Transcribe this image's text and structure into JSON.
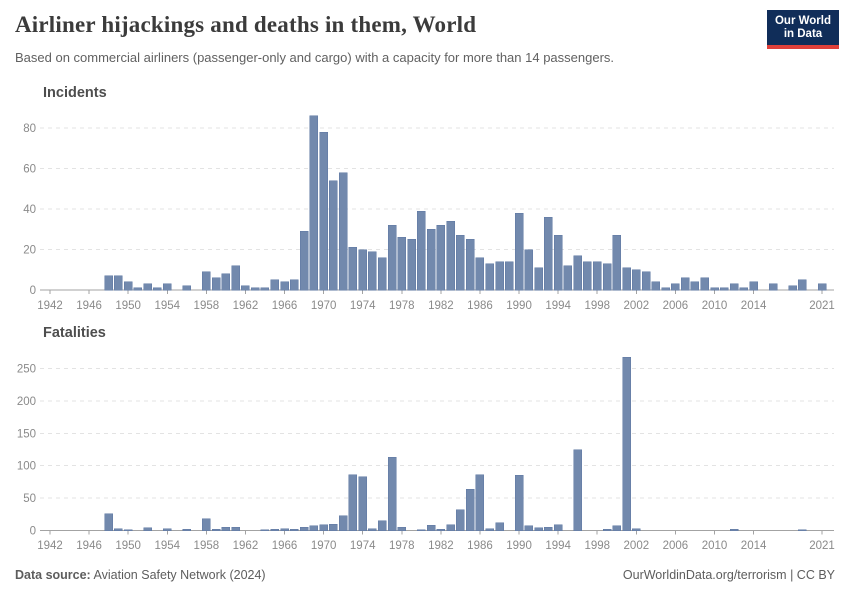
{
  "header": {
    "title": "Airliner hijackings and deaths in them, World",
    "subtitle": "Based on commercial airliners (passenger-only and cargo) with a capacity for more than 14 passengers.",
    "logo": {
      "line1": "Our World",
      "line2": "in Data"
    }
  },
  "footer": {
    "source_label": "Data source:",
    "source_text": " Aviation Safety Network (2024)",
    "url_text": "OurWorldinData.org/terrorism",
    "separator": " | ",
    "license_text": "CC BY"
  },
  "colors": {
    "bar": "#7289ad",
    "bar_stroke": "#5d77a2",
    "grid": "#e3e3e3",
    "axis": "#a3a3a3",
    "tick_label": "#8a8a8a",
    "logo_bg": "#102d59",
    "logo_stripe": "#e0403a"
  },
  "chart_data": [
    {
      "type": "bar",
      "title": "Incidents",
      "x_range": [
        1942,
        2021
      ],
      "x": [
        1942,
        1943,
        1944,
        1945,
        1946,
        1947,
        1948,
        1949,
        1950,
        1951,
        1952,
        1953,
        1954,
        1955,
        1956,
        1957,
        1958,
        1959,
        1960,
        1961,
        1962,
        1963,
        1964,
        1965,
        1966,
        1967,
        1968,
        1969,
        1970,
        1971,
        1972,
        1973,
        1974,
        1975,
        1976,
        1977,
        1978,
        1979,
        1980,
        1981,
        1982,
        1983,
        1984,
        1985,
        1986,
        1987,
        1988,
        1989,
        1990,
        1991,
        1992,
        1993,
        1994,
        1995,
        1996,
        1997,
        1998,
        1999,
        2000,
        2001,
        2002,
        2003,
        2004,
        2005,
        2006,
        2007,
        2008,
        2009,
        2010,
        2011,
        2012,
        2013,
        2014,
        2015,
        2016,
        2017,
        2018,
        2019,
        2020,
        2021
      ],
      "values": [
        0,
        0,
        0,
        0,
        0,
        0,
        7,
        7,
        4,
        1,
        3,
        1,
        3,
        0,
        2,
        0,
        9,
        6,
        8,
        12,
        2,
        1,
        1,
        5,
        4,
        5,
        29,
        86,
        78,
        54,
        58,
        21,
        20,
        19,
        16,
        32,
        26,
        25,
        39,
        30,
        32,
        34,
        27,
        25,
        16,
        13,
        14,
        14,
        38,
        20,
        11,
        36,
        27,
        12,
        17,
        14,
        14,
        13,
        27,
        11,
        10,
        9,
        4,
        1,
        3,
        6,
        4,
        6,
        1,
        1,
        3,
        1,
        4,
        0,
        3,
        0,
        2,
        5,
        0,
        3
      ],
      "ylim": [
        0,
        80
      ],
      "yticks": [
        0,
        20,
        40,
        60,
        80
      ],
      "xticks": [
        1942,
        1946,
        1950,
        1954,
        1958,
        1962,
        1966,
        1970,
        1974,
        1978,
        1982,
        1986,
        1990,
        1994,
        1998,
        2002,
        2006,
        2010,
        2014,
        2021
      ],
      "grid": true,
      "legend": "none"
    },
    {
      "type": "bar",
      "title": "Fatalities",
      "x_range": [
        1942,
        2021
      ],
      "x": [
        1942,
        1943,
        1944,
        1945,
        1946,
        1947,
        1948,
        1949,
        1950,
        1951,
        1952,
        1953,
        1954,
        1955,
        1956,
        1957,
        1958,
        1959,
        1960,
        1961,
        1962,
        1963,
        1964,
        1965,
        1966,
        1967,
        1968,
        1969,
        1970,
        1971,
        1972,
        1973,
        1974,
        1975,
        1976,
        1977,
        1978,
        1979,
        1980,
        1981,
        1982,
        1983,
        1984,
        1985,
        1986,
        1987,
        1988,
        1989,
        1990,
        1991,
        1992,
        1993,
        1994,
        1995,
        1996,
        1997,
        1998,
        1999,
        2000,
        2001,
        2002,
        2003,
        2004,
        2005,
        2006,
        2007,
        2008,
        2009,
        2010,
        2011,
        2012,
        2013,
        2014,
        2015,
        2016,
        2017,
        2018,
        2019,
        2020,
        2021
      ],
      "values": [
        0,
        0,
        0,
        0,
        0,
        0,
        26,
        3,
        1,
        0,
        4,
        0,
        3,
        0,
        2,
        0,
        18,
        2,
        5,
        5,
        0,
        0,
        1,
        2,
        3,
        2,
        5,
        7,
        9,
        10,
        23,
        86,
        83,
        3,
        15,
        113,
        5,
        0,
        1,
        8,
        2,
        9,
        32,
        64,
        86,
        3,
        12,
        0,
        85,
        7,
        4,
        5,
        9,
        0,
        125,
        0,
        0,
        2,
        7,
        267,
        3,
        0,
        0,
        0,
        0,
        0,
        0,
        0,
        0,
        0,
        2,
        0,
        0,
        0,
        0,
        0,
        0,
        1,
        0,
        0
      ],
      "ylim": [
        0,
        250
      ],
      "yticks": [
        0,
        50,
        100,
        150,
        200,
        250
      ],
      "xticks": [
        1942,
        1946,
        1950,
        1954,
        1958,
        1962,
        1966,
        1970,
        1974,
        1978,
        1982,
        1986,
        1990,
        1994,
        1998,
        2002,
        2006,
        2010,
        2014,
        2021
      ],
      "grid": true,
      "legend": "none"
    }
  ]
}
